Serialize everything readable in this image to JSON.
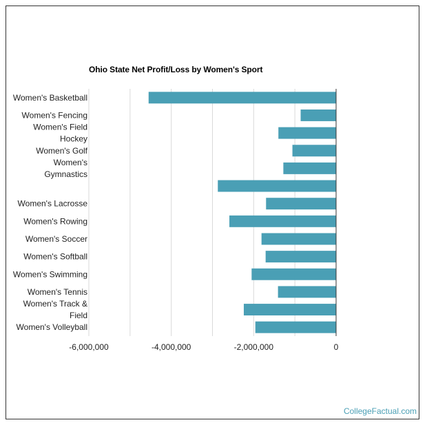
{
  "chart_data": {
    "type": "bar",
    "orientation": "horizontal",
    "title": "Ohio State Net Profit/Loss by Women's Sport",
    "categories": [
      "Women's Basketball",
      "Women's Fencing",
      "Women's Field Hockey",
      "Women's Golf",
      "Women's Gymnastics",
      "",
      "Women's Lacrosse",
      "Women's Rowing",
      "Women's Soccer",
      "Women's Softball",
      "Women's Swimming",
      "Women's Tennis",
      "Women's Track & Field",
      "Women's Volleyball"
    ],
    "category_lines": [
      [
        "Women's Basketball"
      ],
      [
        "Women's Fencing"
      ],
      [
        "Women's Field",
        "Hockey"
      ],
      [
        "Women's Golf"
      ],
      [
        "Women's",
        "Gymnastics"
      ],
      [],
      [
        "Women's Lacrosse"
      ],
      [
        "Women's Rowing"
      ],
      [
        "Women's Soccer"
      ],
      [
        "Women's Softball"
      ],
      [
        "Women's Swimming"
      ],
      [
        "Women's Tennis"
      ],
      [
        "Women's Track &",
        "Field"
      ],
      [
        "Women's Volleyball"
      ]
    ],
    "values": [
      -4550000,
      -860000,
      -1400000,
      -1060000,
      -1280000,
      -2870000,
      -1700000,
      -2590000,
      -1810000,
      -1710000,
      -2050000,
      -1410000,
      -2240000,
      -1960000
    ],
    "xlim": [
      -6000000,
      0
    ],
    "xticks": [
      -6000000,
      -4000000,
      -2000000,
      0
    ],
    "xtick_labels": [
      "-6,000,000",
      "-4,000,000",
      "-2,000,000",
      "0"
    ],
    "minor_grid": [
      -5000000,
      -3000000,
      -1000000
    ],
    "bar_color": "#4a9fb5",
    "grid": true,
    "legend": "none"
  },
  "footer": {
    "credit": "CollegeFactual.com"
  }
}
